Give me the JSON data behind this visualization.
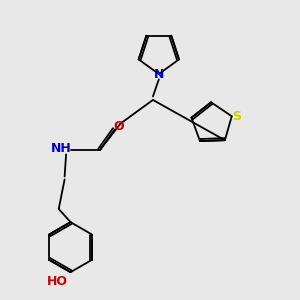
{
  "bg_color": "#e8e8e8",
  "bond_color": "#000000",
  "N_color": "#0000cc",
  "O_color": "#cc0000",
  "S_color": "#cccc00",
  "font_size": 8,
  "label_size": 8,
  "line_width": 1.3,
  "figsize": [
    3.0,
    3.0
  ],
  "dpi": 100,
  "xlim": [
    0,
    10
  ],
  "ylim": [
    0,
    10
  ]
}
